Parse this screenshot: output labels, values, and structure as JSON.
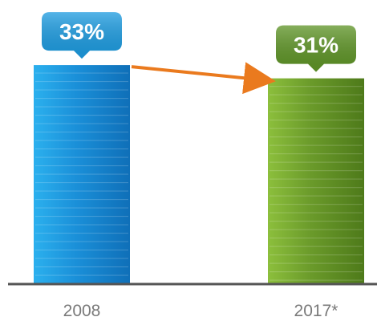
{
  "chart_data": {
    "type": "bar",
    "categories": [
      "2008",
      "2017*"
    ],
    "values": [
      33,
      31
    ],
    "value_labels": [
      "33%",
      "31%"
    ],
    "ylim": [
      0,
      37
    ],
    "grid": false,
    "legend": "none"
  },
  "colors": {
    "bar_2008": "#1a8fd8",
    "bar_2008_light": "#2bb0ee",
    "bar_2008_dark": "#0f6fb8",
    "bar_2017": "#6a9a2a",
    "bar_2017_light": "#8cbf3c",
    "bar_2017_dark": "#4e7a1a",
    "callout_2008": "#1c9be0",
    "callout_2017": "#5e9426",
    "arrow": "#ea7a1e",
    "baseline": "#555555",
    "category_text": "#7a7a7a"
  }
}
